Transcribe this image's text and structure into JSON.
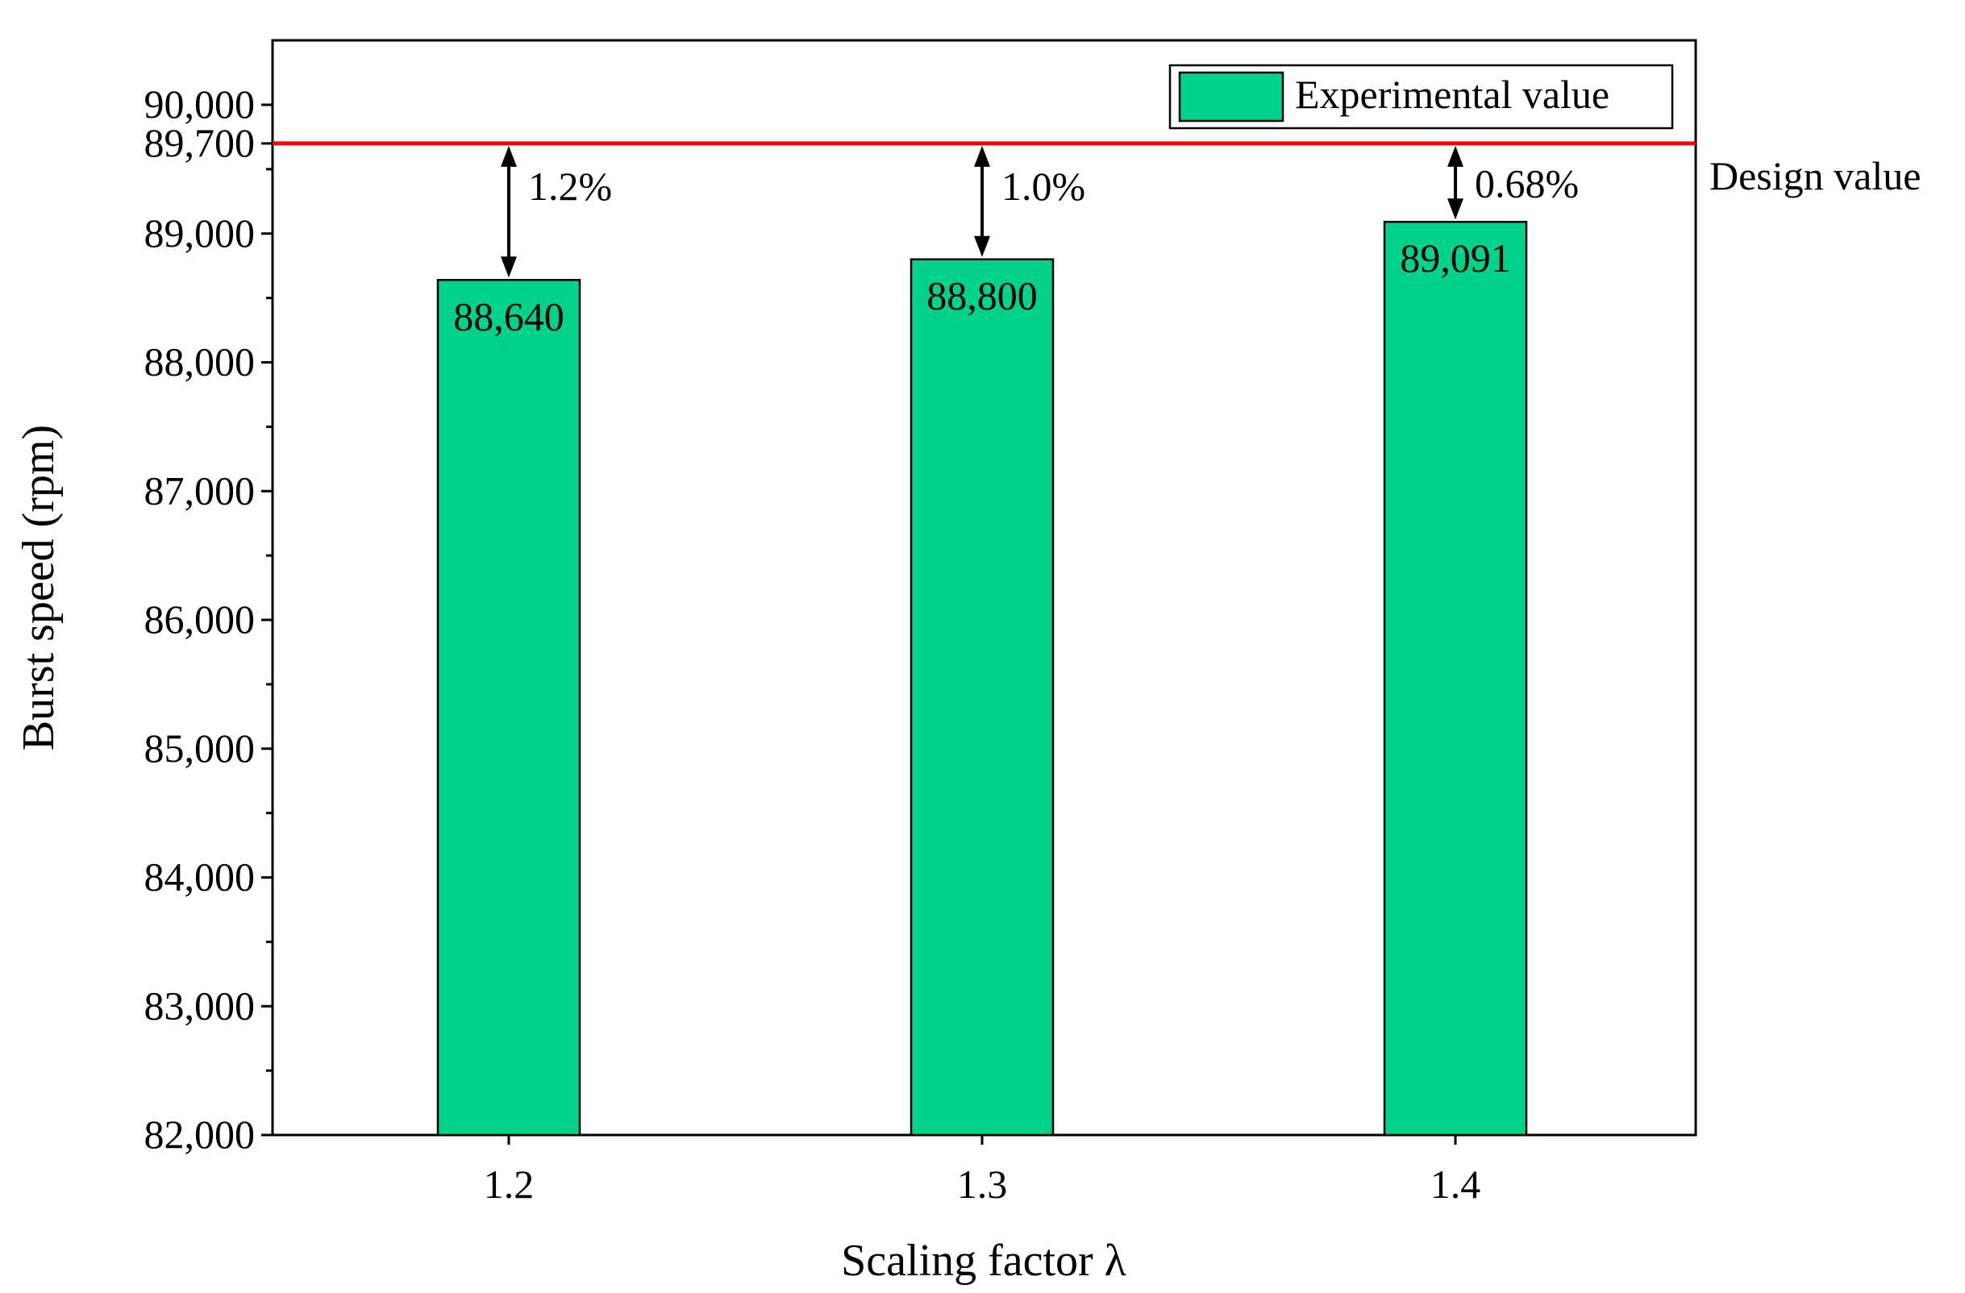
{
  "chart_data": {
    "type": "bar",
    "title": "",
    "xlabel": "Scaling factor λ",
    "ylabel": "Burst speed (rpm)",
    "categories": [
      "1.2",
      "1.3",
      "1.4"
    ],
    "series": [
      {
        "name": "Experimental value",
        "values": [
          88640,
          88800,
          89091
        ],
        "color": "#00D28C"
      }
    ],
    "value_labels": [
      "88,640",
      "88,800",
      "89,091"
    ],
    "ylim": [
      82000,
      90400
    ],
    "y_ticks": [
      82000,
      83000,
      84000,
      85000,
      86000,
      87000,
      88000,
      89000,
      89700,
      90000
    ],
    "y_tick_labels": [
      "82,000",
      "83,000",
      "84,000",
      "85,000",
      "86,000",
      "87,000",
      "88,000",
      "89,000",
      "89,700",
      "90,000"
    ],
    "y_minor_ticks": [
      82500,
      83500,
      84500,
      85500,
      86500,
      87500,
      88500,
      89500
    ],
    "reference_line": {
      "value": 89700,
      "label": "Design value",
      "color": "#FF0000"
    },
    "gap_annotations": [
      "1.2%",
      "1.0%",
      "0.68%"
    ],
    "legend": {
      "position": "top-right",
      "entries": [
        "Experimental value"
      ]
    },
    "grid": false
  }
}
